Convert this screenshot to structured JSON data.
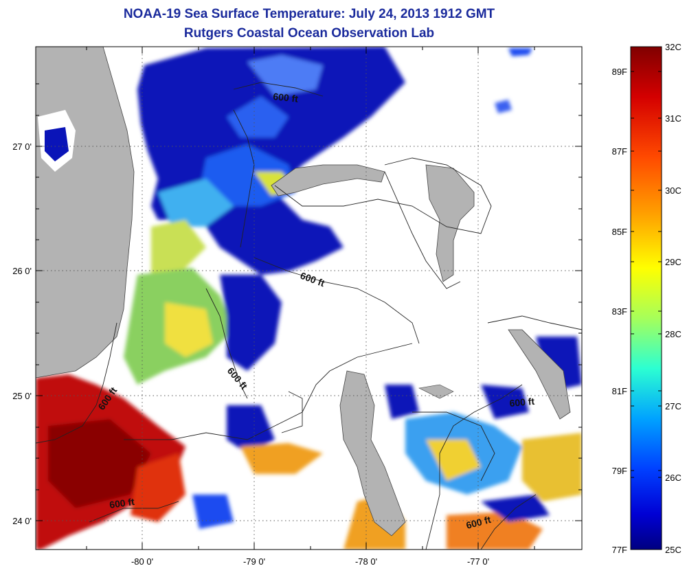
{
  "title": "NOAA-19 Sea Surface Temperature:  July 24, 2013 1912 GMT",
  "subtitle": "Rutgers Coastal Ocean Observation Lab",
  "latitude_labels": [
    "27 0'",
    "26 0'",
    "25 0'",
    "24 0'"
  ],
  "longitude_labels": [
    "-80 0'",
    "-79 0'",
    "-78 0'",
    "-77 0'"
  ],
  "contour_label": "600 ft",
  "colorbar": {
    "celsius_labels": [
      "32C",
      "31C",
      "30C",
      "29C",
      "28C",
      "27C",
      "26C",
      "25C"
    ],
    "fahrenheit_labels": [
      "89F",
      "87F",
      "85F",
      "83F",
      "81F",
      "79F",
      "77F"
    ],
    "colors": [
      "#800000",
      "#d40000",
      "#ff4a00",
      "#ffa600",
      "#ffff00",
      "#a6ff5a",
      "#2cffd2",
      "#00a2ff",
      "#0040ff",
      "#0000d4",
      "#000080"
    ]
  },
  "colors": {
    "land": "#b3b3b3",
    "title": "#1a2a9c",
    "no_data": "#ffffff"
  }
}
